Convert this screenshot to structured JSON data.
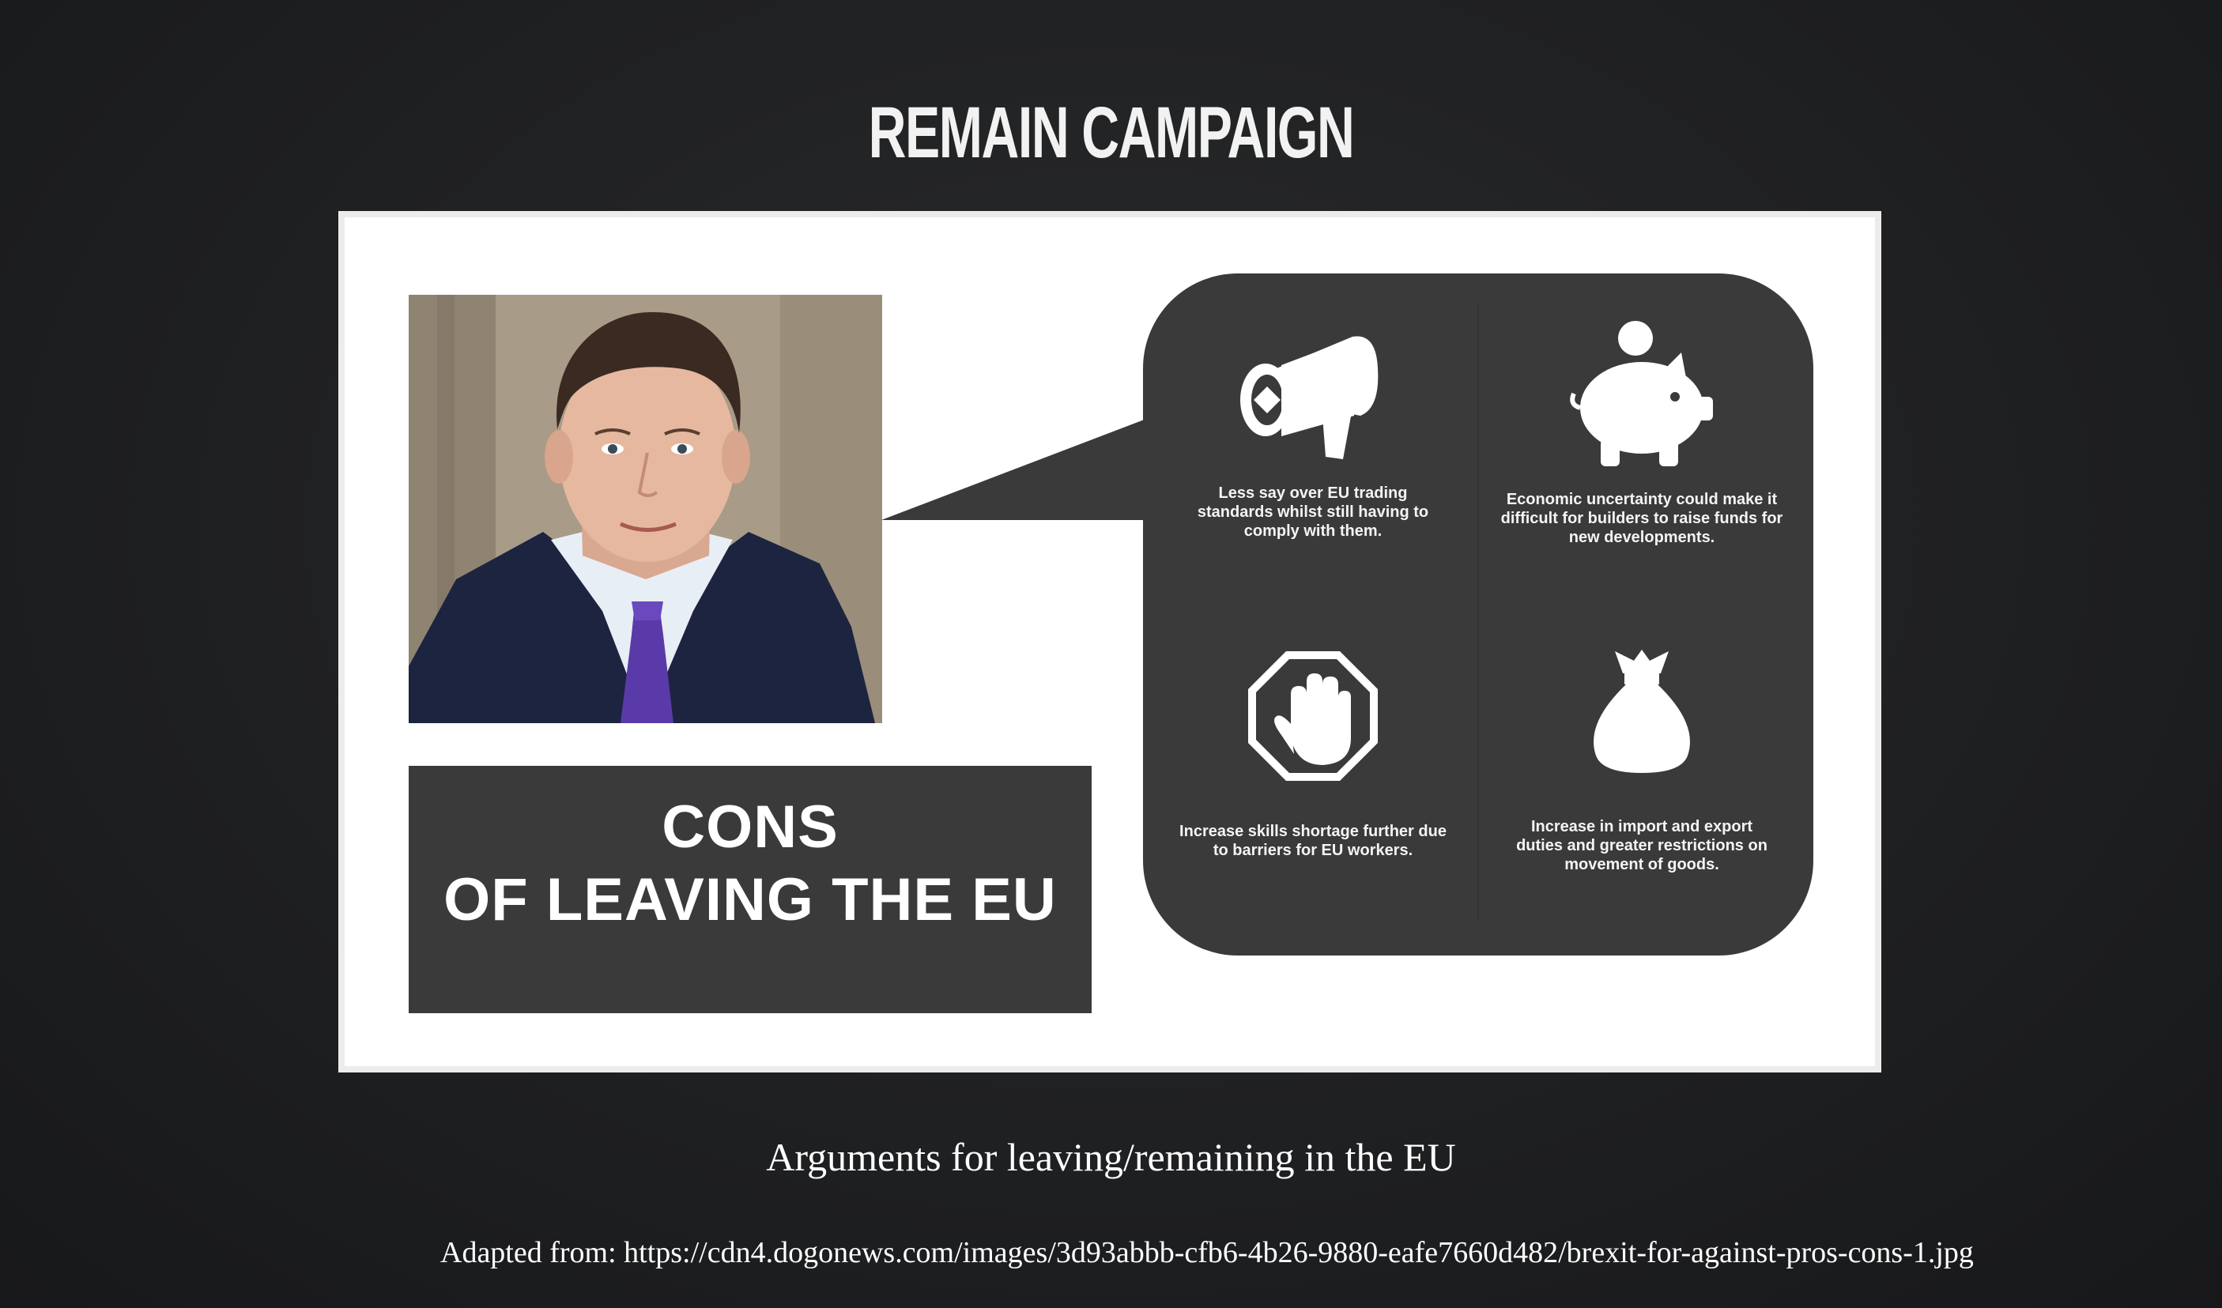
{
  "slide": {
    "title": "REMAIN CAMPAIGN",
    "caption": "Arguments for leaving/remaining in the EU",
    "source": "Adapted from: https://cdn4.dogonews.com/images/3d93abbb-cfb6-4b26-9880-eafe7660d482/brexit-for-against-pros-cons-1.jpg"
  },
  "figure": {
    "cons_box": {
      "line1": "CONS",
      "line2": "OF LEAVING THE EU"
    },
    "bubble": {
      "items": [
        {
          "icon": "megaphone-icon",
          "text": "Less say over EU trading standards whilst still having to comply with them."
        },
        {
          "icon": "piggy-bank-icon",
          "text": "Economic uncertainty could make it difficult for builders to raise funds for new developments."
        },
        {
          "icon": "stop-hand-icon",
          "text": "Increase skills shortage further due to barriers for EU workers."
        },
        {
          "icon": "money-bag-icon",
          "text": "Increase in import and export duties and greater restrictions on movement of goods."
        }
      ]
    }
  },
  "colors": {
    "background": "#1f2022",
    "panel_dark": "#3a3a3a",
    "text_light": "#ffffff"
  }
}
